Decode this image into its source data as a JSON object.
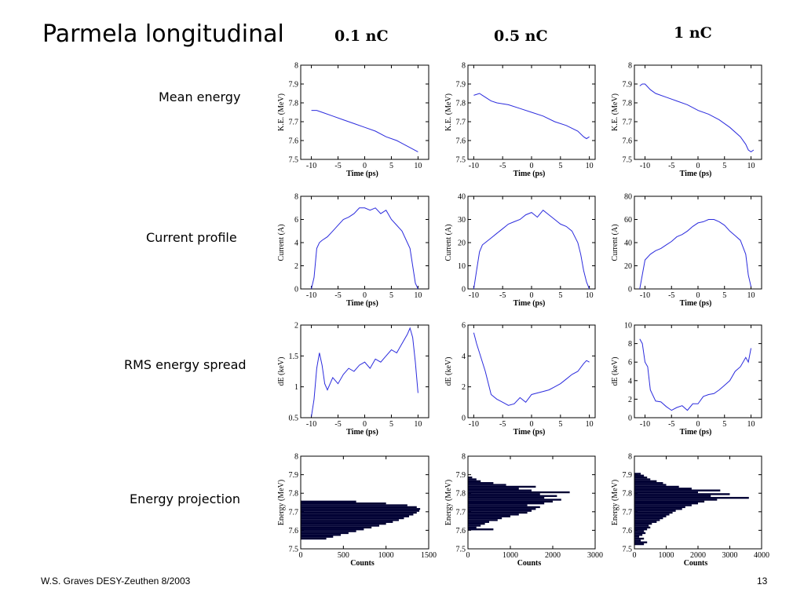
{
  "title": "Parmela longitudinal",
  "columns": [
    "0.1 nC",
    "0.5 nC",
    "1 nC"
  ],
  "rows": [
    "Mean energy",
    "Current profile",
    "RMS energy spread",
    "Energy projection"
  ],
  "footer": {
    "left": "W.S. Graves DESY-Zeuthen 8/2003",
    "page": "13"
  },
  "colors": {
    "line": "#2b2bdd",
    "histogram": "#000033"
  },
  "chart_data": [
    {
      "type": "line",
      "row": 0,
      "col": 0,
      "xlabel": "Time (ps)",
      "ylabel": "K.E. (MeV)",
      "xlim": [
        -12,
        12
      ],
      "ylim": [
        7.5,
        8
      ],
      "xticks": [
        -10,
        -5,
        0,
        5,
        10
      ],
      "yticks": [
        7.5,
        7.6,
        7.7,
        7.8,
        7.9,
        8
      ],
      "ytick_labels": [
        "7.5",
        "7.6",
        "7.7",
        "7.8",
        "7.9",
        "8"
      ],
      "x": [
        -10,
        -9,
        -8,
        -6,
        -4,
        -2,
        0,
        2,
        4,
        6,
        8,
        10
      ],
      "y": [
        7.76,
        7.76,
        7.75,
        7.73,
        7.71,
        7.69,
        7.67,
        7.65,
        7.62,
        7.6,
        7.57,
        7.54
      ]
    },
    {
      "type": "line",
      "row": 0,
      "col": 1,
      "xlabel": "Time (ps)",
      "ylabel": "K.E. (MeV)",
      "xlim": [
        -11,
        11
      ],
      "ylim": [
        7.5,
        8
      ],
      "xticks": [
        -10,
        -5,
        0,
        5,
        10
      ],
      "yticks": [
        7.5,
        7.6,
        7.7,
        7.8,
        7.9,
        8
      ],
      "ytick_labels": [
        "7.5",
        "7.6",
        "7.7",
        "7.8",
        "7.9",
        "8"
      ],
      "x": [
        -10,
        -9,
        -8.5,
        -8,
        -7,
        -6,
        -4,
        -2,
        0,
        2,
        4,
        6,
        8,
        9,
        9.5,
        10
      ],
      "y": [
        7.84,
        7.85,
        7.84,
        7.83,
        7.81,
        7.8,
        7.79,
        7.77,
        7.75,
        7.73,
        7.7,
        7.68,
        7.65,
        7.62,
        7.61,
        7.62
      ]
    },
    {
      "type": "line",
      "row": 0,
      "col": 2,
      "xlabel": "Time (ps)",
      "ylabel": "K.E. (MeV)",
      "xlim": [
        -12,
        12
      ],
      "ylim": [
        7.5,
        8
      ],
      "xticks": [
        -10,
        -5,
        0,
        5,
        10
      ],
      "yticks": [
        7.5,
        7.6,
        7.7,
        7.8,
        7.9,
        8
      ],
      "ytick_labels": [
        "7.5",
        "7.6",
        "7.7",
        "7.8",
        "7.9",
        "8"
      ],
      "x": [
        -11,
        -10.5,
        -10,
        -9,
        -8,
        -6,
        -4,
        -2,
        0,
        2,
        4,
        6,
        8,
        9,
        9.5,
        10,
        10.5
      ],
      "y": [
        7.89,
        7.9,
        7.9,
        7.87,
        7.85,
        7.83,
        7.81,
        7.79,
        7.76,
        7.74,
        7.71,
        7.67,
        7.62,
        7.58,
        7.55,
        7.54,
        7.55
      ]
    },
    {
      "type": "line",
      "row": 1,
      "col": 0,
      "xlabel": "Time (ps)",
      "ylabel": "Current (A)",
      "xlim": [
        -12,
        12
      ],
      "ylim": [
        0,
        8
      ],
      "xticks": [
        -10,
        -5,
        0,
        5,
        10
      ],
      "yticks": [
        0,
        2,
        4,
        6,
        8
      ],
      "ytick_labels": [
        "0",
        "2",
        "4",
        "6",
        "8"
      ],
      "x": [
        -10,
        -9.5,
        -9,
        -8.5,
        -8,
        -7,
        -6,
        -5,
        -4,
        -3,
        -2,
        -1,
        0,
        1,
        2,
        3,
        4,
        5,
        6,
        7,
        8,
        8.5,
        9,
        9.5,
        10
      ],
      "y": [
        0,
        1,
        3.5,
        4,
        4.2,
        4.5,
        5,
        5.5,
        6,
        6.2,
        6.5,
        7,
        7,
        6.8,
        7,
        6.5,
        6.8,
        6,
        5.5,
        5,
        4,
        3.5,
        2,
        0.5,
        0
      ]
    },
    {
      "type": "line",
      "row": 1,
      "col": 1,
      "xlabel": "Time (ps)",
      "ylabel": "Current (A)",
      "xlim": [
        -11,
        11
      ],
      "ylim": [
        0,
        40
      ],
      "xticks": [
        -10,
        -5,
        0,
        5,
        10
      ],
      "yticks": [
        0,
        10,
        20,
        30,
        40
      ],
      "ytick_labels": [
        "0",
        "10",
        "20",
        "30",
        "40"
      ],
      "x": [
        -10,
        -9.5,
        -9,
        -8.5,
        -8,
        -7,
        -6,
        -5,
        -4,
        -3,
        -2,
        -1,
        0,
        1,
        2,
        3,
        4,
        5,
        6,
        7,
        8,
        8.5,
        9,
        9.5,
        10
      ],
      "y": [
        0,
        8,
        16,
        19,
        20,
        22,
        24,
        26,
        28,
        29,
        30,
        32,
        33,
        31,
        34,
        32,
        30,
        28,
        27,
        25,
        20,
        15,
        8,
        3,
        0
      ]
    },
    {
      "type": "line",
      "row": 1,
      "col": 2,
      "xlabel": "Time (ps)",
      "ylabel": "Current (A)",
      "xlim": [
        -12,
        12
      ],
      "ylim": [
        0,
        80
      ],
      "xticks": [
        -10,
        -5,
        0,
        5,
        10
      ],
      "yticks": [
        0,
        20,
        40,
        60,
        80
      ],
      "ytick_labels": [
        "0",
        "20",
        "40",
        "60",
        "80"
      ],
      "x": [
        -11,
        -10,
        -9,
        -8,
        -7,
        -6,
        -5,
        -4,
        -3,
        -2,
        -1,
        0,
        1,
        2,
        3,
        4,
        5,
        6,
        7,
        8,
        9,
        9.5,
        10
      ],
      "y": [
        0,
        25,
        30,
        33,
        35,
        38,
        41,
        45,
        47,
        50,
        54,
        57,
        58,
        60,
        60,
        58,
        55,
        50,
        46,
        42,
        30,
        12,
        2
      ]
    },
    {
      "type": "line",
      "row": 2,
      "col": 0,
      "xlabel": "Time (ps)",
      "ylabel": "dE (keV)",
      "xlim": [
        -12,
        12
      ],
      "ylim": [
        0.5,
        2
      ],
      "xticks": [
        -10,
        -5,
        0,
        5,
        10
      ],
      "yticks": [
        0.5,
        1,
        1.5,
        2
      ],
      "ytick_labels": [
        "0.5",
        "1",
        "1.5",
        "2"
      ],
      "x": [
        -10,
        -9.5,
        -9,
        -8.5,
        -8,
        -7.5,
        -7,
        -6,
        -5,
        -4,
        -3,
        -2,
        -1,
        0,
        1,
        2,
        3,
        4,
        5,
        6,
        7,
        8,
        8.5,
        9,
        9.5,
        10
      ],
      "y": [
        0.52,
        0.8,
        1.3,
        1.55,
        1.35,
        1.05,
        0.95,
        1.15,
        1.05,
        1.2,
        1.3,
        1.25,
        1.35,
        1.4,
        1.3,
        1.45,
        1.4,
        1.5,
        1.6,
        1.55,
        1.7,
        1.85,
        1.95,
        1.8,
        1.4,
        0.9
      ]
    },
    {
      "type": "line",
      "row": 2,
      "col": 1,
      "xlabel": "Time (ps)",
      "ylabel": "dE (keV)",
      "xlim": [
        -11,
        11
      ],
      "ylim": [
        0,
        6
      ],
      "xticks": [
        -10,
        -5,
        0,
        5,
        10
      ],
      "yticks": [
        0,
        2,
        4,
        6
      ],
      "ytick_labels": [
        "0",
        "2",
        "4",
        "6"
      ],
      "x": [
        -10,
        -9.5,
        -9,
        -8,
        -7,
        -6,
        -5,
        -4,
        -3,
        -2,
        -1,
        0,
        1,
        2,
        3,
        4,
        5,
        6,
        7,
        8,
        9,
        9.5,
        10
      ],
      "y": [
        5.5,
        4.8,
        4.2,
        3.0,
        1.5,
        1.2,
        1.0,
        0.8,
        0.9,
        1.3,
        1.0,
        1.5,
        1.6,
        1.7,
        1.8,
        2.0,
        2.2,
        2.5,
        2.8,
        3.0,
        3.5,
        3.7,
        3.6
      ]
    },
    {
      "type": "line",
      "row": 2,
      "col": 2,
      "xlabel": "Time (ps)",
      "ylabel": "dE (keV)",
      "xlim": [
        -12,
        12
      ],
      "ylim": [
        0,
        10
      ],
      "xticks": [
        -10,
        -5,
        0,
        5,
        10
      ],
      "yticks": [
        0,
        2,
        4,
        6,
        8,
        10
      ],
      "ytick_labels": [
        "0",
        "2",
        "4",
        "6",
        "8",
        "10"
      ],
      "x": [
        -11,
        -10.5,
        -10,
        -9.5,
        -9,
        -8,
        -7,
        -6,
        -5,
        -4,
        -3,
        -2,
        -1,
        0,
        1,
        2,
        3,
        4,
        5,
        6,
        7,
        8,
        9,
        9.5,
        10
      ],
      "y": [
        8.5,
        8,
        6,
        5.5,
        3,
        1.8,
        1.7,
        1.2,
        0.8,
        1.1,
        1.3,
        0.8,
        1.5,
        1.5,
        2.3,
        2.5,
        2.6,
        3,
        3.5,
        4,
        5,
        5.5,
        6.5,
        6,
        7.5
      ]
    },
    {
      "type": "bar",
      "orientation": "horizontal",
      "row": 3,
      "col": 0,
      "xlabel": "Counts",
      "ylabel": "Energy (MeV)",
      "xlim": [
        0,
        1500
      ],
      "ylim": [
        7.5,
        8
      ],
      "xticks": [
        0,
        500,
        1000,
        1500
      ],
      "yticks": [
        7.5,
        7.6,
        7.7,
        7.8,
        7.9,
        8
      ],
      "ytick_labels": [
        "7.5",
        "7.6",
        "7.7",
        "7.8",
        "7.9",
        "8"
      ],
      "bin_width": 0.01,
      "bins": [
        7.55,
        7.56,
        7.57,
        7.58,
        7.59,
        7.6,
        7.61,
        7.62,
        7.63,
        7.64,
        7.65,
        7.66,
        7.67,
        7.68,
        7.69,
        7.7,
        7.71,
        7.72,
        7.73,
        7.74,
        7.75
      ],
      "values": [
        300,
        380,
        470,
        560,
        650,
        740,
        830,
        920,
        1000,
        1080,
        1150,
        1210,
        1270,
        1320,
        1360,
        1390,
        1400,
        1360,
        1250,
        1000,
        650
      ]
    },
    {
      "type": "bar",
      "orientation": "horizontal",
      "row": 3,
      "col": 1,
      "xlabel": "Counts",
      "ylabel": "Energy (MeV)",
      "xlim": [
        0,
        3000
      ],
      "ylim": [
        7.5,
        8
      ],
      "xticks": [
        0,
        1000,
        2000,
        3000
      ],
      "yticks": [
        7.5,
        7.6,
        7.7,
        7.8,
        7.9,
        8
      ],
      "ytick_labels": [
        "7.5",
        "7.6",
        "7.7",
        "7.8",
        "7.9",
        "8"
      ],
      "bin_width": 0.01,
      "bins": [
        7.6,
        7.61,
        7.62,
        7.63,
        7.64,
        7.65,
        7.66,
        7.67,
        7.68,
        7.69,
        7.7,
        7.71,
        7.72,
        7.73,
        7.74,
        7.75,
        7.76,
        7.77,
        7.78,
        7.79,
        7.8,
        7.81,
        7.82,
        7.83,
        7.84,
        7.85,
        7.86,
        7.87,
        7.88
      ],
      "values": [
        600,
        200,
        300,
        400,
        500,
        700,
        800,
        1000,
        1200,
        1400,
        1500,
        1600,
        1700,
        1400,
        1800,
        2000,
        2200,
        1800,
        2100,
        1700,
        2400,
        1500,
        1200,
        1600,
        900,
        600,
        300,
        200,
        100
      ]
    },
    {
      "type": "bar",
      "orientation": "horizontal",
      "row": 3,
      "col": 2,
      "xlabel": "Counts",
      "ylabel": "Energy (MeV)",
      "xlim": [
        0,
        4000
      ],
      "ylim": [
        7.5,
        8
      ],
      "xticks": [
        0,
        1000,
        2000,
        3000,
        4000
      ],
      "yticks": [
        7.5,
        7.6,
        7.7,
        7.8,
        7.9,
        8
      ],
      "ytick_labels": [
        "7.5",
        "7.6",
        "7.7",
        "7.8",
        "7.9",
        "8"
      ],
      "bin_width": 0.01,
      "bins": [
        7.52,
        7.53,
        7.54,
        7.55,
        7.56,
        7.57,
        7.58,
        7.59,
        7.6,
        7.61,
        7.62,
        7.63,
        7.64,
        7.65,
        7.66,
        7.67,
        7.68,
        7.69,
        7.7,
        7.71,
        7.72,
        7.73,
        7.74,
        7.75,
        7.76,
        7.77,
        7.78,
        7.79,
        7.8,
        7.81,
        7.82,
        7.83,
        7.84,
        7.85,
        7.86,
        7.87,
        7.88,
        7.89,
        7.9
      ],
      "values": [
        300,
        400,
        200,
        300,
        150,
        250,
        350,
        300,
        400,
        500,
        450,
        550,
        700,
        800,
        900,
        1000,
        1100,
        1200,
        1300,
        1500,
        1600,
        1800,
        2000,
        2200,
        2600,
        3600,
        2400,
        3000,
        2000,
        2700,
        1800,
        1400,
        1000,
        900,
        700,
        500,
        400,
        300,
        200
      ]
    }
  ]
}
